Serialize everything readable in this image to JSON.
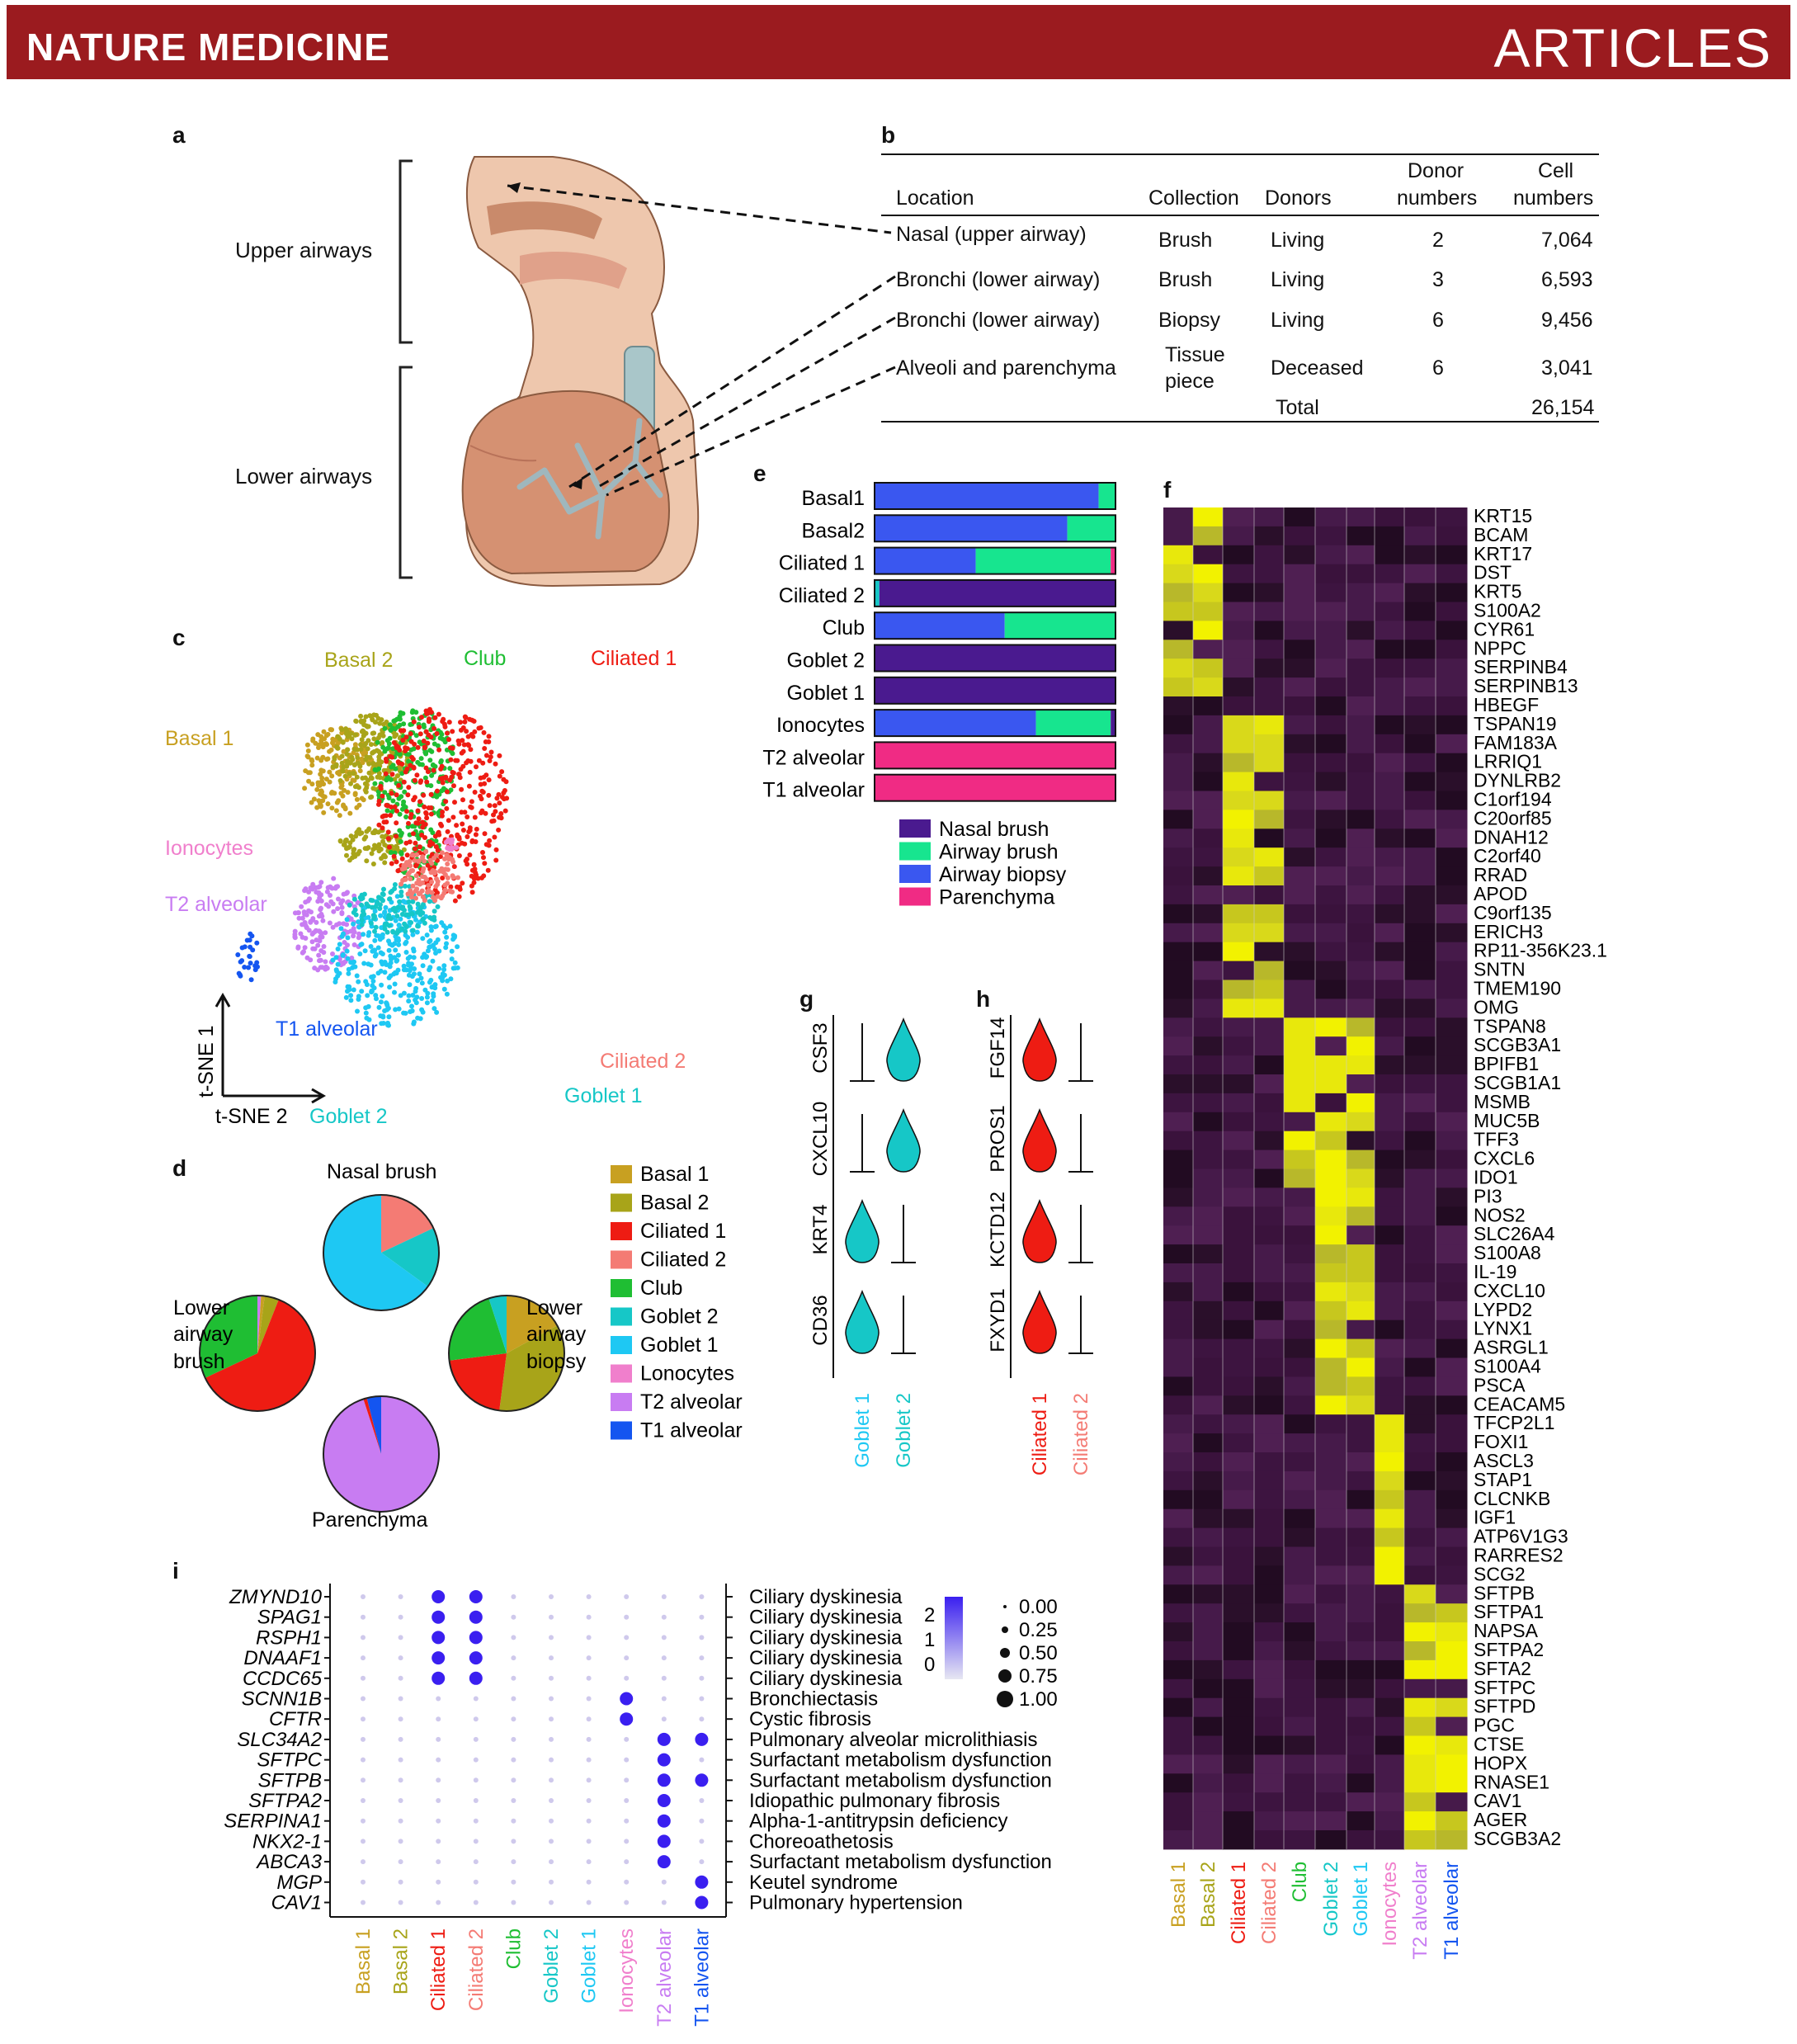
{
  "header": {
    "journal": "NATURE MEDICINE",
    "section": "ARTICLES"
  },
  "colors": {
    "brand": "#9b1b1f",
    "basal1": "#c8a021",
    "basal2": "#a8a419",
    "ciliated1": "#ee1c13",
    "ciliated2": "#f47b74",
    "club": "#1fbe33",
    "goblet2": "#16c7c7",
    "goblet1": "#1ec8f3",
    "ionocytes": "#f07fcc",
    "t2": "#c87cf2",
    "t1": "#1455f0",
    "nasal_brush": "#4a1a8f",
    "airway_brush": "#17e58f",
    "airway_biopsy": "#3a57f0",
    "parenchyma": "#f02b84"
  },
  "panel_labels": [
    "a",
    "b",
    "c",
    "d",
    "e",
    "f",
    "g",
    "h",
    "i"
  ],
  "panel_a": {
    "upper": "Upper airways",
    "lower": "Lower airways"
  },
  "panel_b": {
    "headers": [
      "Location",
      "Collection",
      "Donors",
      "Donor numbers",
      "Cell numbers"
    ],
    "header_line1": [
      "Donor",
      "Cell"
    ],
    "header_line2": [
      "numbers",
      "numbers"
    ],
    "rows": [
      [
        "Nasal (upper airway)",
        "Brush",
        "Living",
        "2",
        "7,064"
      ],
      [
        "Bronchi (lower airway)",
        "Brush",
        "Living",
        "3",
        "6,593"
      ],
      [
        "Bronchi (lower airway)",
        "Biopsy",
        "Living",
        "6",
        "9,456"
      ],
      [
        "Alveoli and parenchyma",
        "Tissue piece",
        "Deceased",
        "6",
        "3,041"
      ]
    ],
    "tissue_line1": "Tissue",
    "tissue_line2": "piece",
    "total_label": "Total",
    "total_value": "26,154"
  },
  "panel_c": {
    "labels": {
      "basal2": "Basal 2",
      "club": "Club",
      "ciliated1": "Ciliated 1",
      "basal1": "Basal 1",
      "ionocytes": "Ionocytes",
      "t2": "T2 alveolar",
      "t1": "T1 alveolar",
      "ciliated2": "Ciliated 2",
      "goblet2": "Goblet 2",
      "goblet1": "Goblet 1"
    },
    "xaxis": "t-SNE 2",
    "yaxis": "t-SNE 1"
  },
  "panel_d": {
    "pie_titles": {
      "nasal": "Nasal brush",
      "lower_l1": "Lower",
      "lower_l2": "airway",
      "lower_l3": "brush",
      "biopsy_l1": "Lower",
      "biopsy_l2": "airway",
      "biopsy_l3": "biopsy",
      "parenchyma": "Parenchyma"
    },
    "legend": [
      "Basal 1",
      "Basal 2",
      "Ciliated 1",
      "Ciliated 2",
      "Club",
      "Goblet 2",
      "Goblet 1",
      "Lonocytes",
      "T2 alveolar",
      "T1 alveolar"
    ]
  },
  "panel_e": {
    "rows": [
      "Basal1",
      "Basal2",
      "Ciliated 1",
      "Ciliated 2",
      "Club",
      "Goblet 2",
      "Goblet 1",
      "Ionocytes",
      "T2 alveolar",
      "T1 alveolar"
    ],
    "legend": [
      "Nasal brush",
      "Airway brush",
      "Airway biopsy",
      "Parenchyma"
    ]
  },
  "panel_f": {
    "genes": [
      "KRT15",
      "BCAM",
      "KRT17",
      "DST",
      "KRT5",
      "S100A2",
      "CYR61",
      "NPPC",
      "SERPINB4",
      "SERPINB13",
      "HBEGF",
      "TSPAN19",
      "FAM183A",
      "LRRIQ1",
      "DYNLRB2",
      "C1orf194",
      "C20orf85",
      "DNAH12",
      "C2orf40",
      "RRAD",
      "APOD",
      "C9orf135",
      "ERICH3",
      "RP11-356K23.1",
      "SNTN",
      "TMEM190",
      "OMG",
      "TSPAN8",
      "SCGB3A1",
      "BPIFB1",
      "SCGB1A1",
      "MSMB",
      "MUC5B",
      "TFF3",
      "CXCL6",
      "IDO1",
      "PI3",
      "NOS2",
      "SLC26A4",
      "S100A8",
      "IL-19",
      "CXCL10",
      "LYPD2",
      "LYNX1",
      "ASRGL1",
      "S100A4",
      "PSCA",
      "CEACAM5",
      "TFCP2L1",
      "FOXI1",
      "ASCL3",
      "STAP1",
      "CLCNKB",
      "IGF1",
      "ATP6V1G3",
      "RARRES2",
      "SCG2",
      "SFTPB",
      "SFTPA1",
      "NAPSA",
      "SFTPA2",
      "SFTA2",
      "SFTPC",
      "SFTPD",
      "PGC",
      "CTSE",
      "HOPX",
      "RNASE1",
      "CAV1",
      "AGER",
      "SCGB3A2"
    ],
    "columns": [
      "Basal 1",
      "Basal 2",
      "Ciliated 1",
      "Ciliated 2",
      "Club",
      "Goblet 2",
      "Goblet 1",
      "Ionocytes",
      "T2 alveolar",
      "T1 alveolar"
    ]
  },
  "panel_g": {
    "genes": [
      "CSF3",
      "CXCL10",
      "KRT4",
      "CD36"
    ],
    "groups": [
      "Goblet 1",
      "Goblet 2"
    ]
  },
  "panel_h": {
    "genes": [
      "FGF14",
      "PROS1",
      "KCTD12",
      "FXYD1"
    ],
    "groups": [
      "Ciliated 1",
      "Ciliated 2"
    ]
  },
  "panel_i": {
    "genes": [
      "ZMYND10",
      "SPAG1",
      "RSPH1",
      "DNAAF1",
      "CCDC65",
      "SCNN1B",
      "CFTR",
      "SLC34A2",
      "SFTPC",
      "SFTPB",
      "SFTPA2",
      "SERPINA1",
      "NKX2-1",
      "ABCA3",
      "MGP",
      "CAV1"
    ],
    "diseases": [
      "Ciliary dyskinesia",
      "Ciliary dyskinesia",
      "Ciliary dyskinesia",
      "Ciliary dyskinesia",
      "Ciliary dyskinesia",
      "Bronchiectasis",
      "Cystic fibrosis",
      "Pulmonary alveolar microlithiasis",
      "Surfactant metabolism dysfunction",
      "Surfactant metabolism dysfunction",
      "Idiopathic pulmonary fibrosis",
      "Alpha-1-antitrypsin deficiency",
      "Choreoathetosis",
      "Surfactant metabolism dysfunction",
      "Keutel syndrome",
      "Pulmonary hypertension"
    ],
    "columns": [
      "Basal 1",
      "Basal 2",
      "Ciliated 1",
      "Ciliated 2",
      "Club",
      "Goblet 2",
      "Goblet 1",
      "Ionocytes",
      "T2 alveolar",
      "T1 alveolar"
    ],
    "color_scale": [
      "2",
      "1",
      "0"
    ],
    "size_scale": [
      "0.00",
      "0.25",
      "0.50",
      "0.75",
      "1.00"
    ]
  }
}
